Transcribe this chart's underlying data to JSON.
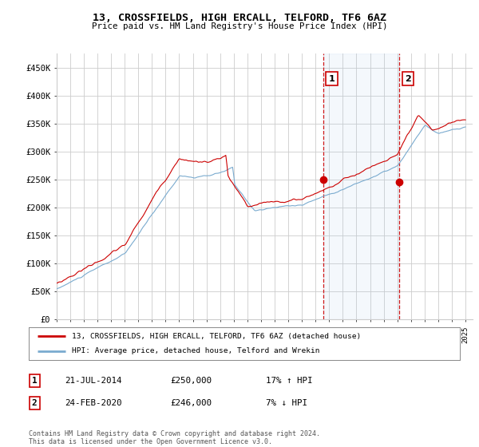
{
  "title": "13, CROSSFIELDS, HIGH ERCALL, TELFORD, TF6 6AZ",
  "subtitle": "Price paid vs. HM Land Registry's House Price Index (HPI)",
  "ylabel_ticks": [
    "£0",
    "£50K",
    "£100K",
    "£150K",
    "£200K",
    "£250K",
    "£300K",
    "£350K",
    "£400K",
    "£450K"
  ],
  "ytick_values": [
    0,
    50000,
    100000,
    150000,
    200000,
    250000,
    300000,
    350000,
    400000,
    450000
  ],
  "ylim": [
    0,
    475000
  ],
  "xlim_start": 1995.0,
  "xlim_end": 2025.5,
  "marker1_x": 2014.55,
  "marker1_y": 250000,
  "marker1_label": "1",
  "marker2_x": 2020.15,
  "marker2_y": 246000,
  "marker2_label": "2",
  "vline1_x": 2014.55,
  "vline2_x": 2020.15,
  "legend_line1": "13, CROSSFIELDS, HIGH ERCALL, TELFORD, TF6 6AZ (detached house)",
  "legend_line2": "HPI: Average price, detached house, Telford and Wrekin",
  "table_row1_num": "1",
  "table_row1_date": "21-JUL-2014",
  "table_row1_price": "£250,000",
  "table_row1_hpi": "17% ↑ HPI",
  "table_row2_num": "2",
  "table_row2_date": "24-FEB-2020",
  "table_row2_price": "£246,000",
  "table_row2_hpi": "7% ↓ HPI",
  "footnote": "Contains HM Land Registry data © Crown copyright and database right 2024.\nThis data is licensed under the Open Government Licence v3.0.",
  "red_color": "#cc0000",
  "blue_color": "#7aabcf",
  "vline_color": "#cc0000",
  "background_color": "#ffffff",
  "grid_color": "#cccccc"
}
